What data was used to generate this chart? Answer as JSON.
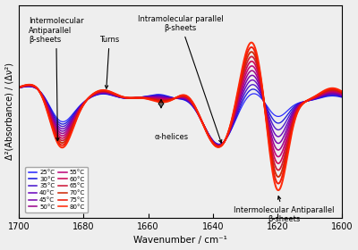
{
  "xlabel": "Wavenumber / cm⁻¹",
  "ylabel": "Δ²(Absorbance) / (Δν²)",
  "xlim": [
    1700,
    1600
  ],
  "temperatures": [
    25,
    30,
    35,
    40,
    45,
    50,
    55,
    60,
    65,
    70,
    75,
    80
  ],
  "colors": [
    "#2222ff",
    "#1111dd",
    "#4411cc",
    "#6600bb",
    "#7700aa",
    "#990088",
    "#bb0077",
    "#cc0055",
    "#cc1133",
    "#cc2200",
    "#ee1100",
    "#ff2200"
  ],
  "background_color": "#eeeeee"
}
